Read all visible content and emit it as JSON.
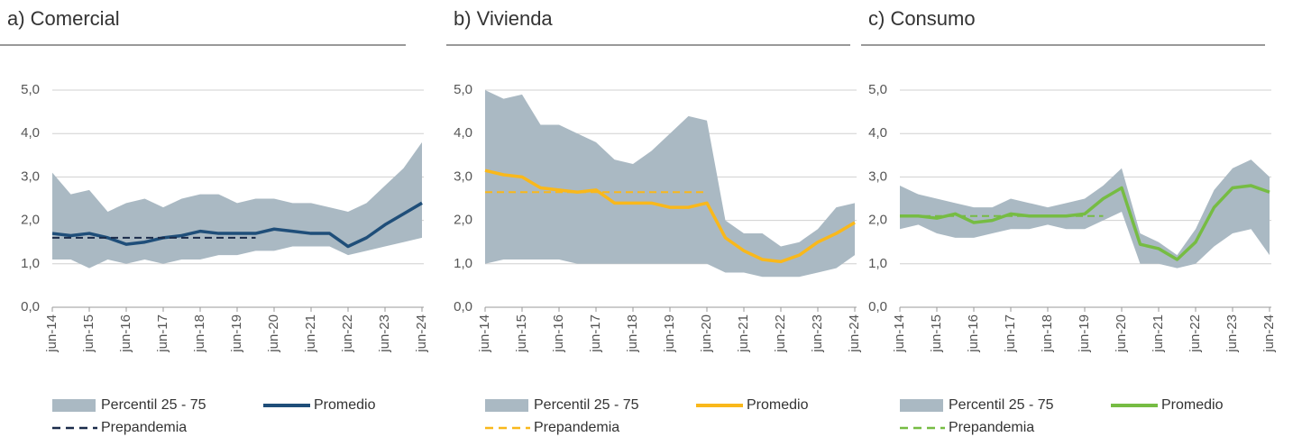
{
  "chart_data": [
    {
      "type": "line",
      "title": "a) Comercial",
      "categories": [
        "jun-14",
        null,
        "jun-15",
        null,
        "jun-16",
        null,
        "jun-17",
        null,
        "jun-18",
        null,
        "jun-19",
        null,
        "jun-20",
        null,
        "jun-21",
        null,
        "jun-22",
        null,
        "jun-23",
        null,
        "jun-24"
      ],
      "ylim": [
        0,
        5
      ],
      "yticks": [
        {
          "value": 0,
          "label": "0,0"
        },
        {
          "value": 1,
          "label": "1,0"
        },
        {
          "value": 2,
          "label": "2,0"
        },
        {
          "value": 3,
          "label": "3,0"
        },
        {
          "value": 4,
          "label": "4,0"
        },
        {
          "value": 5,
          "label": "5,0"
        }
      ],
      "grid": true,
      "series": [
        {
          "name": "Percentil 25 - 75",
          "style": "band",
          "color": "#aab9c3",
          "values": [
            [
              1.1,
              3.1
            ],
            [
              1.1,
              2.6
            ],
            [
              0.9,
              2.7
            ],
            [
              1.1,
              2.2
            ],
            [
              1.0,
              2.4
            ],
            [
              1.1,
              2.5
            ],
            [
              1.0,
              2.3
            ],
            [
              1.1,
              2.5
            ],
            [
              1.1,
              2.6
            ],
            [
              1.2,
              2.6
            ],
            [
              1.2,
              2.4
            ],
            [
              1.3,
              2.5
            ],
            [
              1.3,
              2.5
            ],
            [
              1.4,
              2.4
            ],
            [
              1.4,
              2.4
            ],
            [
              1.4,
              2.3
            ],
            [
              1.2,
              2.2
            ],
            [
              1.3,
              2.4
            ],
            [
              1.4,
              2.8
            ],
            [
              1.5,
              3.2
            ],
            [
              1.6,
              3.8
            ]
          ]
        },
        {
          "name": "Promedio",
          "style": "solid",
          "color": "#1f4e79",
          "values": [
            1.7,
            1.65,
            1.7,
            1.6,
            1.45,
            1.5,
            1.6,
            1.65,
            1.75,
            1.7,
            1.7,
            1.7,
            1.8,
            1.75,
            1.7,
            1.7,
            1.4,
            1.6,
            1.9,
            2.15,
            2.4
          ]
        },
        {
          "name": "Prepandemia",
          "style": "dashed",
          "color": "#1a2b4a",
          "values": [
            1.6,
            1.6,
            1.6,
            1.6,
            1.6,
            1.6,
            1.6,
            1.6,
            1.6,
            1.6,
            1.6,
            1.6,
            null,
            null,
            null,
            null,
            null,
            null,
            null,
            null,
            null
          ]
        }
      ]
    },
    {
      "type": "line",
      "title": "b) Vivienda",
      "categories": [
        "jun-14",
        null,
        "jun-15",
        null,
        "jun-16",
        null,
        "jun-17",
        null,
        "jun-18",
        null,
        "jun-19",
        null,
        "jun-20",
        null,
        "jun-21",
        null,
        "jun-22",
        null,
        "jun-23",
        null,
        "jun-24"
      ],
      "ylim": [
        0,
        5
      ],
      "yticks": [
        {
          "value": 0,
          "label": "0,0"
        },
        {
          "value": 1,
          "label": "1,0"
        },
        {
          "value": 2,
          "label": "2,0"
        },
        {
          "value": 3,
          "label": "3,0"
        },
        {
          "value": 4,
          "label": "4,0"
        },
        {
          "value": 5,
          "label": "5,0"
        }
      ],
      "grid": true,
      "series": [
        {
          "name": "Percentil 25 - 75",
          "style": "band",
          "color": "#aab9c3",
          "values": [
            [
              1.0,
              5.0
            ],
            [
              1.1,
              4.8
            ],
            [
              1.1,
              4.9
            ],
            [
              1.1,
              4.2
            ],
            [
              1.1,
              4.2
            ],
            [
              1.0,
              4.0
            ],
            [
              1.0,
              3.8
            ],
            [
              1.0,
              3.4
            ],
            [
              1.0,
              3.3
            ],
            [
              1.0,
              3.6
            ],
            [
              1.0,
              4.0
            ],
            [
              1.0,
              4.4
            ],
            [
              1.0,
              4.3
            ],
            [
              0.8,
              2.0
            ],
            [
              0.8,
              1.7
            ],
            [
              0.7,
              1.7
            ],
            [
              0.7,
              1.4
            ],
            [
              0.7,
              1.5
            ],
            [
              0.8,
              1.8
            ],
            [
              0.9,
              2.3
            ],
            [
              1.2,
              2.4
            ]
          ]
        },
        {
          "name": "Promedio",
          "style": "solid",
          "color": "#f9b81b",
          "values": [
            3.15,
            3.05,
            3.0,
            2.75,
            2.7,
            2.65,
            2.7,
            2.4,
            2.4,
            2.4,
            2.3,
            2.3,
            2.4,
            1.6,
            1.3,
            1.1,
            1.05,
            1.2,
            1.5,
            1.7,
            1.95
          ]
        },
        {
          "name": "Prepandemia",
          "style": "dashed",
          "color": "#f9b81b",
          "values": [
            2.65,
            2.65,
            2.65,
            2.65,
            2.65,
            2.65,
            2.65,
            2.65,
            2.65,
            2.65,
            2.65,
            2.65,
            2.65,
            null,
            null,
            null,
            null,
            null,
            null,
            null,
            null
          ]
        }
      ]
    },
    {
      "type": "line",
      "title": "c) Consumo",
      "categories": [
        "jun-14",
        null,
        "jun-15",
        null,
        "jun-16",
        null,
        "jun-17",
        null,
        "jun-18",
        null,
        "jun-19",
        null,
        "jun-20",
        null,
        "jun-21",
        null,
        "jun-22",
        null,
        "jun-23",
        null,
        "jun-24"
      ],
      "ylim": [
        0,
        5
      ],
      "yticks": [
        {
          "value": 0,
          "label": "0,0"
        },
        {
          "value": 1,
          "label": "1,0"
        },
        {
          "value": 2,
          "label": "2,0"
        },
        {
          "value": 3,
          "label": "3,0"
        },
        {
          "value": 4,
          "label": "4,0"
        },
        {
          "value": 5,
          "label": "5,0"
        }
      ],
      "grid": true,
      "series": [
        {
          "name": "Percentil 25 - 75",
          "style": "band",
          "color": "#aab9c3",
          "values": [
            [
              1.8,
              2.8
            ],
            [
              1.9,
              2.6
            ],
            [
              1.7,
              2.5
            ],
            [
              1.6,
              2.4
            ],
            [
              1.6,
              2.3
            ],
            [
              1.7,
              2.3
            ],
            [
              1.8,
              2.5
            ],
            [
              1.8,
              2.4
            ],
            [
              1.9,
              2.3
            ],
            [
              1.8,
              2.4
            ],
            [
              1.8,
              2.5
            ],
            [
              2.0,
              2.8
            ],
            [
              2.2,
              3.2
            ],
            [
              1.0,
              1.7
            ],
            [
              1.0,
              1.5
            ],
            [
              0.9,
              1.2
            ],
            [
              1.0,
              1.8
            ],
            [
              1.4,
              2.7
            ],
            [
              1.7,
              3.2
            ],
            [
              1.8,
              3.4
            ],
            [
              1.2,
              3.0
            ]
          ]
        },
        {
          "name": "Promedio",
          "style": "solid",
          "color": "#76bc43",
          "values": [
            2.1,
            2.1,
            2.05,
            2.15,
            1.95,
            2.0,
            2.15,
            2.1,
            2.1,
            2.1,
            2.15,
            2.5,
            2.75,
            1.45,
            1.35,
            1.1,
            1.5,
            2.3,
            2.75,
            2.8,
            2.65
          ]
        },
        {
          "name": "Prepandemia",
          "style": "dashed",
          "color": "#76bc43",
          "values": [
            2.1,
            2.1,
            2.1,
            2.1,
            2.1,
            2.1,
            2.1,
            2.1,
            2.1,
            2.1,
            2.1,
            2.1,
            null,
            null,
            null,
            null,
            null,
            null,
            null,
            null,
            null
          ]
        }
      ]
    }
  ]
}
